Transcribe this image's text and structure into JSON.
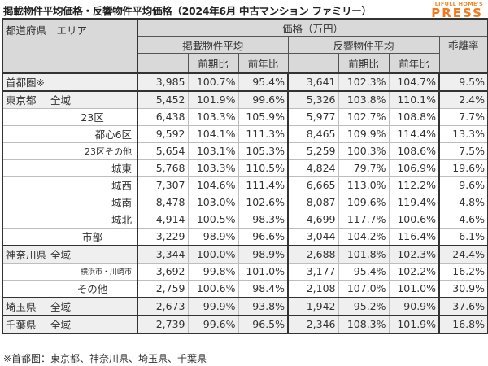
{
  "title": "掲載物件平均価格・反響物件平均価格（2024年6月 中古マンション ファミリー）",
  "logo": {
    "top": "LIFULL HOME'S",
    "main": "PRESS",
    "color": "#f07a1e"
  },
  "header": {
    "area_label": "都道府県　エリア",
    "price_group": "価格（万円）",
    "listed_avg": "掲載物件平均",
    "inquiry_avg": "反響物件平均",
    "qoq": "前期比",
    "yoy": "前年比",
    "divergence": "乖離率"
  },
  "rows": [
    {
      "pref": "首都圏※",
      "area": "",
      "listed": "3,985",
      "listed_qoq": "100.7%",
      "listed_yoy": "95.4%",
      "inquiry": "3,641",
      "inquiry_qoq": "102.3%",
      "inquiry_yoy": "104.7%",
      "divergence": "9.5%"
    },
    {
      "pref": "東京都",
      "area": "全域",
      "listed": "5,452",
      "listed_qoq": "101.9%",
      "listed_yoy": "99.6%",
      "inquiry": "5,326",
      "inquiry_qoq": "103.8%",
      "inquiry_yoy": "110.1%",
      "divergence": "2.4%"
    },
    {
      "pref": "",
      "area": "23区",
      "listed": "6,438",
      "listed_qoq": "103.3%",
      "listed_yoy": "105.9%",
      "inquiry": "5,977",
      "inquiry_qoq": "102.7%",
      "inquiry_yoy": "108.8%",
      "divergence": "7.7%"
    },
    {
      "pref": "",
      "area": "都心6区",
      "listed": "9,592",
      "listed_qoq": "104.1%",
      "listed_yoy": "111.3%",
      "inquiry": "8,465",
      "inquiry_qoq": "109.9%",
      "inquiry_yoy": "114.4%",
      "divergence": "13.3%"
    },
    {
      "pref": "",
      "area": "23区その他",
      "listed": "5,654",
      "listed_qoq": "103.1%",
      "listed_yoy": "105.3%",
      "inquiry": "5,259",
      "inquiry_qoq": "100.3%",
      "inquiry_yoy": "108.6%",
      "divergence": "7.5%"
    },
    {
      "pref": "",
      "area": "城東",
      "listed": "5,768",
      "listed_qoq": "103.3%",
      "listed_yoy": "110.5%",
      "inquiry": "4,824",
      "inquiry_qoq": "79.7%",
      "inquiry_yoy": "106.9%",
      "divergence": "19.6%"
    },
    {
      "pref": "",
      "area": "城西",
      "listed": "7,307",
      "listed_qoq": "104.6%",
      "listed_yoy": "111.4%",
      "inquiry": "6,665",
      "inquiry_qoq": "113.0%",
      "inquiry_yoy": "112.2%",
      "divergence": "9.6%"
    },
    {
      "pref": "",
      "area": "城南",
      "listed": "8,478",
      "listed_qoq": "103.0%",
      "listed_yoy": "102.6%",
      "inquiry": "8,087",
      "inquiry_qoq": "109.6%",
      "inquiry_yoy": "119.4%",
      "divergence": "4.8%"
    },
    {
      "pref": "",
      "area": "城北",
      "listed": "4,914",
      "listed_qoq": "100.5%",
      "listed_yoy": "98.3%",
      "inquiry": "4,699",
      "inquiry_qoq": "117.7%",
      "inquiry_yoy": "100.6%",
      "divergence": "4.6%"
    },
    {
      "pref": "",
      "area": "市部",
      "listed": "3,229",
      "listed_qoq": "98.9%",
      "listed_yoy": "96.6%",
      "inquiry": "3,044",
      "inquiry_qoq": "104.2%",
      "inquiry_yoy": "116.4%",
      "divergence": "6.1%"
    },
    {
      "pref": "神奈川県",
      "area": "全域",
      "listed": "3,344",
      "listed_qoq": "100.0%",
      "listed_yoy": "98.9%",
      "inquiry": "2,688",
      "inquiry_qoq": "101.8%",
      "inquiry_yoy": "102.3%",
      "divergence": "24.4%"
    },
    {
      "pref": "",
      "area": "横浜市・川崎市",
      "listed": "3,692",
      "listed_qoq": "99.8%",
      "listed_yoy": "101.0%",
      "inquiry": "3,177",
      "inquiry_qoq": "95.4%",
      "inquiry_yoy": "102.2%",
      "divergence": "16.2%"
    },
    {
      "pref": "",
      "area": "その他",
      "listed": "2,759",
      "listed_qoq": "100.6%",
      "listed_yoy": "98.4%",
      "inquiry": "2,108",
      "inquiry_qoq": "107.0%",
      "inquiry_yoy": "101.0%",
      "divergence": "30.9%"
    },
    {
      "pref": "埼玉県",
      "area": "全域",
      "listed": "2,673",
      "listed_qoq": "99.9%",
      "listed_yoy": "93.8%",
      "inquiry": "1,942",
      "inquiry_qoq": "95.2%",
      "inquiry_yoy": "90.9%",
      "divergence": "37.6%"
    },
    {
      "pref": "千葉県",
      "area": "全域",
      "listed": "2,739",
      "listed_qoq": "99.6%",
      "listed_yoy": "96.5%",
      "inquiry": "2,346",
      "inquiry_qoq": "108.3%",
      "inquiry_yoy": "101.9%",
      "divergence": "16.8%"
    }
  ],
  "footnote": "※首都圏：東京都、神奈川県、埼玉県、千葉県"
}
